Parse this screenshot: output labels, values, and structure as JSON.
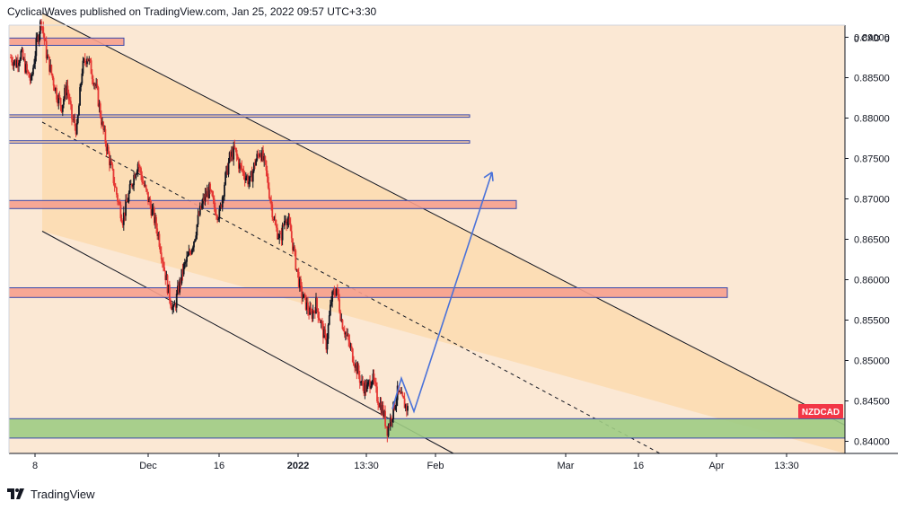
{
  "header": {
    "publisher_text": "CyclicalWaves published on TradingView.com, Jan 25, 2022 09:57 UTC+3:30"
  },
  "footer": {
    "logo_text": "TradingView"
  },
  "colors": {
    "background": "#fbe8d4",
    "channel_fill": "#fcd9a8",
    "resistance_zone": "#f6a08e",
    "support_zone": "#9fcc84",
    "zone_border": "#3949ab",
    "candle_up": "#131722",
    "candle_down": "#e53935",
    "projection": "#4a72d9",
    "symbol_badge": "#f23645"
  },
  "chart_data": {
    "type": "candlestick",
    "symbol": "NZDCAD",
    "currency_label": "CAD",
    "axis_top_left": "0",
    "axis_top_right": "0",
    "ylim": [
      0.8385,
      0.8915
    ],
    "y_ticks": [
      "0.89000",
      "0.88500",
      "0.88000",
      "0.87500",
      "0.87000",
      "0.86500",
      "0.86000",
      "0.85500",
      "0.85000",
      "0.84500",
      "0.84000"
    ],
    "x_tick_labels": [
      "8",
      "Dec",
      "16",
      "2022",
      "13:30",
      "Feb",
      "Mar",
      "16",
      "Apr",
      "13:30"
    ],
    "last_price_label": "NZDCAD",
    "horizontal_zones": [
      {
        "kind": "resistance",
        "from": 0.889,
        "to": 0.8899
      },
      {
        "kind": "line",
        "from": 0.8801,
        "to": 0.8804
      },
      {
        "kind": "line",
        "from": 0.8769,
        "to": 0.8772
      },
      {
        "kind": "resistance",
        "from": 0.8688,
        "to": 0.8698
      },
      {
        "kind": "resistance",
        "from": 0.8578,
        "to": 0.859
      },
      {
        "kind": "support",
        "from": 0.8404,
        "to": 0.8428
      }
    ],
    "channel": {
      "upper_start": 0.893,
      "upper_end": 0.842,
      "lower_start": 0.866,
      "lower_end": 0.8385
    },
    "close_path": [
      0.8875,
      0.8868,
      0.888,
      0.886,
      0.8845,
      0.889,
      0.8922,
      0.888,
      0.8855,
      0.883,
      0.8815,
      0.884,
      0.88,
      0.8785,
      0.886,
      0.8878,
      0.8855,
      0.883,
      0.879,
      0.876,
      0.873,
      0.87,
      0.8675,
      0.87,
      0.8725,
      0.8745,
      0.872,
      0.87,
      0.868,
      0.8655,
      0.862,
      0.8585,
      0.856,
      0.859,
      0.8615,
      0.863,
      0.865,
      0.868,
      0.87,
      0.871,
      0.869,
      0.868,
      0.872,
      0.875,
      0.876,
      0.874,
      0.873,
      0.872,
      0.8745,
      0.876,
      0.874,
      0.87,
      0.8665,
      0.865,
      0.868,
      0.866,
      0.862,
      0.8585,
      0.857,
      0.8555,
      0.857,
      0.8545,
      0.852,
      0.8575,
      0.859,
      0.855,
      0.853,
      0.851,
      0.849,
      0.847,
      0.8465,
      0.848,
      0.8455,
      0.844,
      0.8415,
      0.8435,
      0.846,
      0.845,
      0.844
    ],
    "projection_path": [
      0.844,
      0.8478,
      0.8437,
      0.8733
    ]
  }
}
